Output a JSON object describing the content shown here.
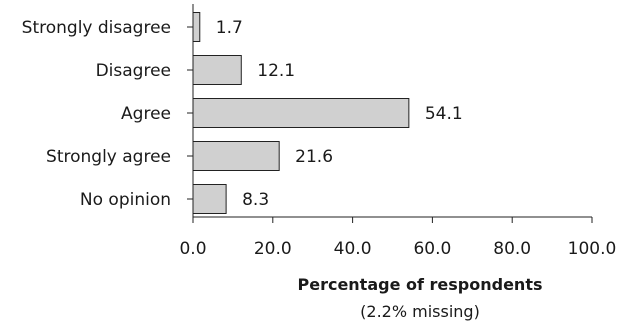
{
  "chart_data": {
    "type": "bar",
    "orientation": "horizontal",
    "categories": [
      "Strongly disagree",
      "Disagree",
      "Agree",
      "Strongly agree",
      "No opinion"
    ],
    "values": [
      1.7,
      12.1,
      54.1,
      21.6,
      8.3
    ],
    "value_labels": [
      "1.7",
      "12.1",
      "54.1",
      "21.6",
      "8.3"
    ],
    "xlabel": "Percentage of respondents",
    "xlabel_note": "(2.2% missing)",
    "xlim": [
      0,
      100
    ],
    "xticks": [
      0,
      20,
      40,
      60,
      80,
      100
    ],
    "xtick_labels": [
      "0.0",
      "20.0",
      "40.0",
      "60.0",
      "80.0",
      "100.0"
    ],
    "grid": false,
    "legend": "none",
    "colors": {
      "bar_fill": "#d0d0d0",
      "bar_stroke": "#222222"
    }
  }
}
